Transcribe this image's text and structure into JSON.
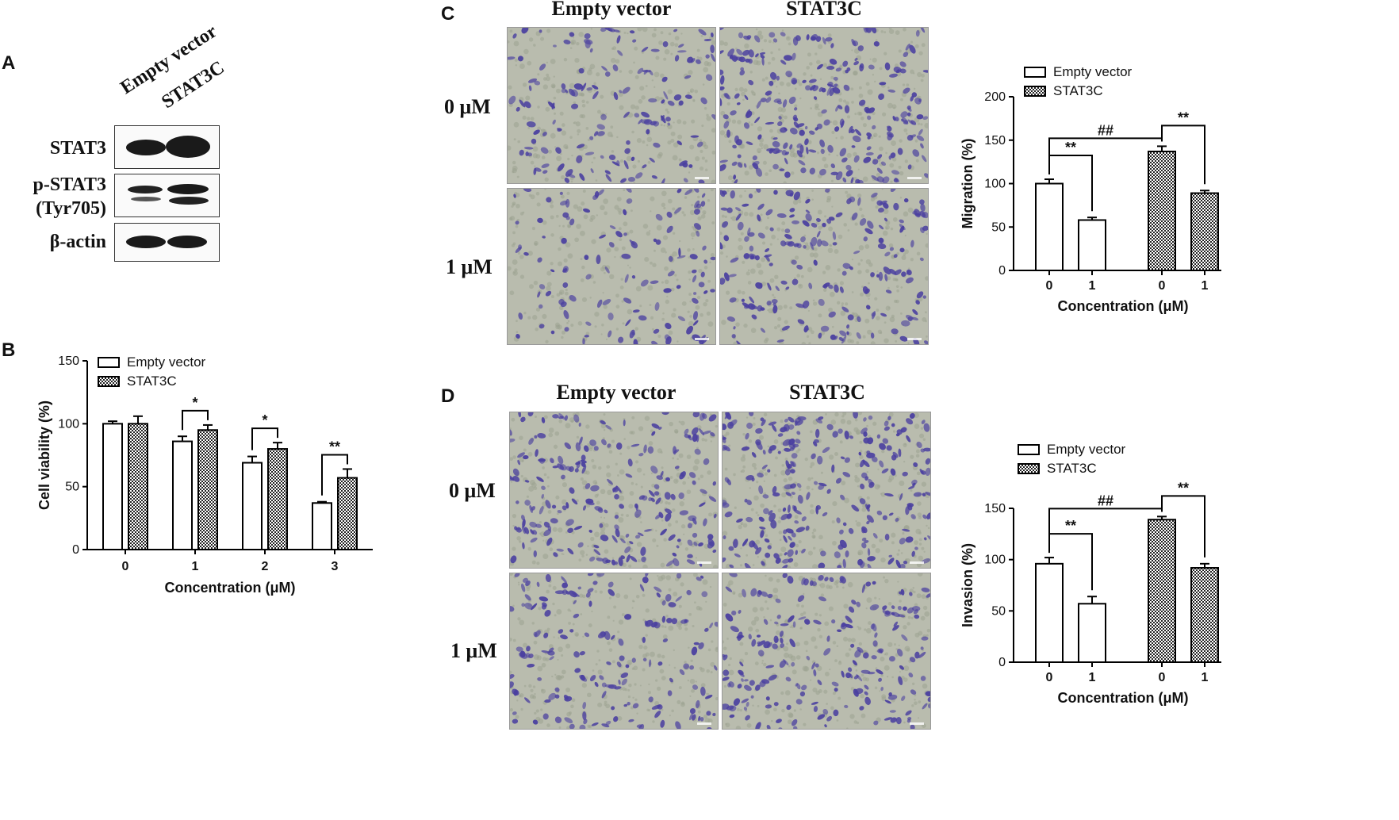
{
  "panels": {
    "A": "A",
    "B": "B",
    "C": "C",
    "D": "D"
  },
  "panel_a": {
    "lane_labels": [
      "Empty vector",
      "STAT3C"
    ],
    "rows": [
      "STAT3",
      "p-STAT3\n(Tyr705)",
      "β-actin"
    ]
  },
  "panel_c": {
    "col_titles": [
      "Empty vector",
      "STAT3C"
    ],
    "row_labels": [
      "0 μM",
      "1 μM"
    ]
  },
  "panel_d": {
    "col_titles": [
      "Empty vector",
      "STAT3C"
    ],
    "row_labels": [
      "0 μM",
      "1 μM"
    ]
  },
  "colors": {
    "stain": "#4a3fa0",
    "background": "#b9bcae"
  },
  "chart_data": [
    {
      "id": "B",
      "type": "bar",
      "categories": [
        "0",
        "1",
        "2",
        "3"
      ],
      "series": [
        {
          "name": "Empty vector",
          "values": [
            100,
            86,
            69,
            37
          ],
          "errors": [
            2,
            4,
            5,
            1
          ],
          "pattern": "open"
        },
        {
          "name": "STAT3C",
          "values": [
            100,
            95,
            80,
            57
          ],
          "errors": [
            6,
            4,
            5,
            7
          ],
          "pattern": "checker"
        }
      ],
      "xlabel": "Concentration (μM)",
      "ylabel": "Cell viability (%)",
      "ylim": [
        0,
        150
      ],
      "yticks": [
        0,
        50,
        100,
        150
      ],
      "legend_position": "top-left",
      "significance": [
        {
          "category": "1",
          "label": "*"
        },
        {
          "category": "2",
          "label": "*"
        },
        {
          "category": "3",
          "label": "**"
        }
      ]
    },
    {
      "id": "C",
      "type": "bar",
      "categories": [
        "0",
        "1",
        "0",
        "1"
      ],
      "series": [
        {
          "name": "Empty vector",
          "values": [
            100,
            58
          ],
          "errors": [
            5,
            3
          ],
          "pattern": "open",
          "x": [
            "0",
            "1"
          ]
        },
        {
          "name": "STAT3C",
          "values": [
            137,
            89
          ],
          "errors": [
            6,
            3
          ],
          "pattern": "checker",
          "x": [
            "0",
            "1"
          ]
        }
      ],
      "xlabel": "Concentration (μM)",
      "ylabel": "Migration (%)",
      "ylim": [
        0,
        200
      ],
      "yticks": [
        0,
        50,
        100,
        150,
        200
      ],
      "legend_position": "top",
      "significance": [
        {
          "between": "Empty vector 0 vs 1",
          "label": "**"
        },
        {
          "between": "STAT3C 0 vs 1",
          "label": "**"
        },
        {
          "between": "Empty vector 0 vs STAT3C 0",
          "label": "##"
        }
      ]
    },
    {
      "id": "D",
      "type": "bar",
      "categories": [
        "0",
        "1",
        "0",
        "1"
      ],
      "series": [
        {
          "name": "Empty vector",
          "values": [
            96,
            57
          ],
          "errors": [
            6,
            7
          ],
          "pattern": "open",
          "x": [
            "0",
            "1"
          ]
        },
        {
          "name": "STAT3C",
          "values": [
            139,
            92
          ],
          "errors": [
            3,
            4
          ],
          "pattern": "checker",
          "x": [
            "0",
            "1"
          ]
        }
      ],
      "xlabel": "Concentration (μM)",
      "ylabel": "Invasion (%)",
      "ylim": [
        0,
        150
      ],
      "yticks": [
        0,
        50,
        100,
        150
      ],
      "legend_position": "top",
      "significance": [
        {
          "between": "Empty vector 0 vs 1",
          "label": "**"
        },
        {
          "between": "STAT3C 0 vs 1",
          "label": "**"
        },
        {
          "between": "Empty vector 0 vs STAT3C 0",
          "label": "##"
        }
      ]
    }
  ]
}
